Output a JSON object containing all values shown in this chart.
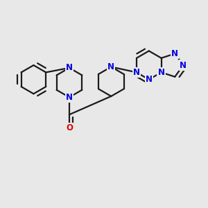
{
  "bg_color": "#e8e8e8",
  "bond_color": "#1a1a1a",
  "atom_color_N": "#0000dd",
  "atom_color_O": "#dd0000",
  "bond_width": 1.6,
  "font_size_atom": 8.5,
  "figsize": [
    3.0,
    3.0
  ],
  "dpi": 100,
  "xlim": [
    0,
    10
  ],
  "ylim": [
    0,
    10
  ]
}
